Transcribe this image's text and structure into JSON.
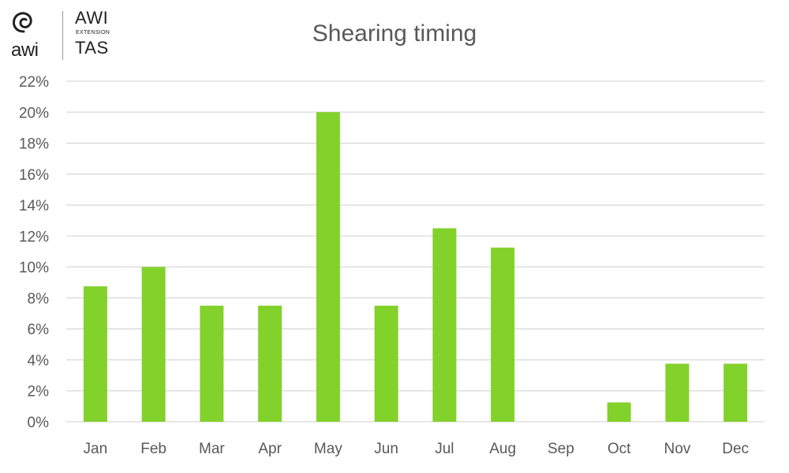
{
  "logo": {
    "swirl_text": "awi",
    "line1": "AWI",
    "line2": "EXTENSION",
    "line3": "TAS"
  },
  "chart_data": {
    "type": "bar",
    "title": "Shearing timing",
    "categories": [
      "Jan",
      "Feb",
      "Mar",
      "Apr",
      "May",
      "Jun",
      "Jul",
      "Aug",
      "Sep",
      "Oct",
      "Nov",
      "Dec"
    ],
    "values": [
      8.75,
      10.0,
      7.5,
      7.5,
      20.0,
      7.5,
      12.5,
      11.25,
      0,
      1.25,
      3.75,
      3.75
    ],
    "value_unit": "%",
    "xlabel": "",
    "ylabel": "",
    "ylim": [
      0,
      22
    ],
    "yticks": [
      "0%",
      "2%",
      "4%",
      "6%",
      "8%",
      "10%",
      "12%",
      "14%",
      "16%",
      "18%",
      "20%",
      "22%"
    ],
    "grid": true,
    "legend": "none",
    "bar_color": "#83d12b",
    "grid_color": "#d9d9d9"
  }
}
